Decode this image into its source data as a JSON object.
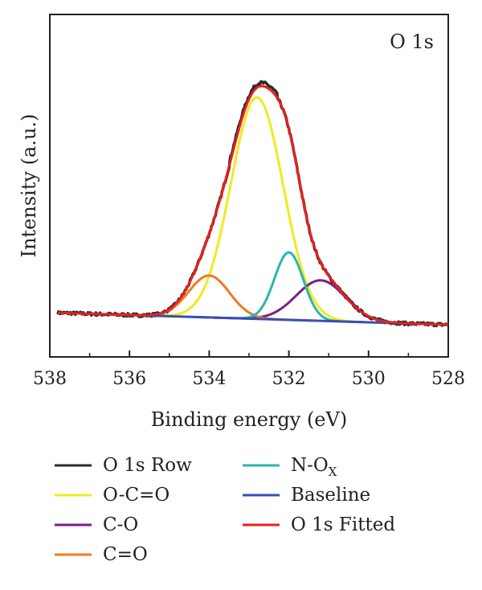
{
  "chart_data": {
    "type": "line",
    "panel_label": "O 1s",
    "xlabel": "Binding energy (eV)",
    "ylabel": "Intensity (a.u.)",
    "x_reversed": true,
    "xlim": [
      538,
      528
    ],
    "ylim": [
      0,
      1.0
    ],
    "xticks": [
      538,
      536,
      534,
      532,
      530,
      528
    ],
    "yticks_shown": false,
    "grid": false,
    "legend_placement": "below",
    "series": [
      {
        "name": "O 1s Row",
        "color": "#2b2b2b",
        "kind": "raw",
        "values_note": "noisy envelope"
      },
      {
        "name": "O-C=O",
        "color": "#f2ea1c",
        "kind": "peak",
        "center": 532.8,
        "height": 0.82,
        "fwhm": 1.55
      },
      {
        "name": "C-O",
        "color": "#7a1f8a",
        "kind": "peak",
        "center": 531.2,
        "height": 0.15,
        "fwhm": 1.45
      },
      {
        "name": "C=O",
        "color": "#f07a1e",
        "kind": "peak",
        "center": 534.0,
        "height": 0.155,
        "fwhm": 1.2
      },
      {
        "name": "N-O",
        "name_sub": "X",
        "color": "#2bb5b0",
        "kind": "peak",
        "center": 532.0,
        "height": 0.25,
        "fwhm": 0.85
      },
      {
        "name": "Baseline",
        "color": "#3a4fb0",
        "kind": "baseline",
        "start": 0.045,
        "end": 0.0
      },
      {
        "name": "O 1s Fitted",
        "color": "#e8201c",
        "kind": "sum"
      }
    ]
  }
}
